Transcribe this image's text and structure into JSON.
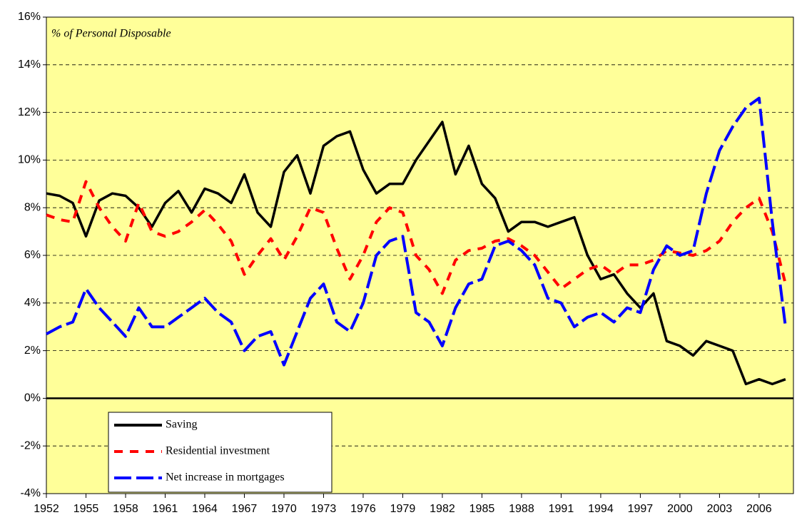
{
  "chart_data": {
    "type": "line",
    "annotation": "% of Personal Disposable",
    "x": [
      1952,
      1953,
      1954,
      1955,
      1956,
      1957,
      1958,
      1959,
      1960,
      1961,
      1962,
      1963,
      1964,
      1965,
      1966,
      1967,
      1968,
      1969,
      1970,
      1971,
      1972,
      1973,
      1974,
      1975,
      1976,
      1977,
      1978,
      1979,
      1980,
      1981,
      1982,
      1983,
      1984,
      1985,
      1986,
      1987,
      1988,
      1989,
      1990,
      1991,
      1992,
      1993,
      1994,
      1995,
      1996,
      1997,
      1998,
      1999,
      2000,
      2001,
      2002,
      2003,
      2004,
      2005,
      2006,
      2007,
      2008
    ],
    "series": [
      {
        "name": "Saving",
        "color": "#000000",
        "line_style": "solid",
        "values": [
          8.6,
          8.5,
          8.2,
          6.8,
          8.3,
          8.6,
          8.5,
          8.0,
          7.2,
          8.2,
          8.7,
          7.8,
          8.8,
          8.6,
          8.2,
          9.4,
          7.8,
          7.2,
          9.5,
          10.2,
          8.6,
          10.6,
          11.0,
          11.2,
          9.6,
          8.6,
          9.0,
          9.0,
          10.0,
          10.8,
          11.6,
          9.4,
          10.6,
          9.0,
          8.4,
          7.0,
          7.4,
          7.4,
          7.2,
          7.4,
          7.6,
          6.0,
          5.0,
          5.2,
          4.4,
          3.8,
          4.4,
          2.4,
          2.2,
          1.8,
          2.4,
          2.2,
          2.0,
          0.6,
          0.8,
          0.6,
          0.8
        ]
      },
      {
        "name": "Residential investment",
        "color": "#ff0000",
        "line_style": "dashed",
        "values": [
          7.7,
          7.5,
          7.4,
          9.1,
          8.0,
          7.2,
          6.6,
          8.2,
          7.0,
          6.8,
          7.0,
          7.4,
          7.9,
          7.3,
          6.6,
          5.2,
          6.0,
          6.7,
          5.8,
          6.8,
          8.0,
          7.8,
          6.3,
          5.0,
          6.0,
          7.4,
          8.0,
          7.8,
          6.0,
          5.4,
          4.4,
          5.8,
          6.2,
          6.3,
          6.6,
          6.7,
          6.4,
          6.0,
          5.3,
          4.6,
          5.0,
          5.4,
          5.6,
          5.2,
          5.6,
          5.6,
          5.8,
          6.2,
          6.1,
          6.0,
          6.2,
          6.6,
          7.4,
          8.0,
          8.4,
          7.0,
          4.8
        ]
      },
      {
        "name": "Net increase in mortgages",
        "color": "#0000ff",
        "line_style": "long-dashed",
        "values": [
          2.7,
          3.0,
          3.2,
          4.6,
          3.8,
          3.2,
          2.6,
          3.8,
          3.0,
          3.0,
          3.4,
          3.8,
          4.2,
          3.6,
          3.2,
          2.0,
          2.6,
          2.8,
          1.4,
          2.8,
          4.2,
          4.8,
          3.2,
          2.8,
          4.0,
          6.0,
          6.6,
          6.8,
          3.6,
          3.2,
          2.2,
          3.8,
          4.8,
          5.0,
          6.4,
          6.6,
          6.2,
          5.6,
          4.2,
          4.0,
          3.0,
          3.4,
          3.6,
          3.2,
          3.8,
          3.6,
          5.4,
          6.4,
          6.0,
          6.2,
          8.6,
          10.4,
          11.4,
          12.2,
          12.6,
          7.4,
          3.0
        ]
      }
    ],
    "xlim": [
      1952,
      2008.6
    ],
    "xticks": [
      1952,
      1955,
      1958,
      1961,
      1964,
      1967,
      1970,
      1973,
      1976,
      1979,
      1982,
      1985,
      1988,
      1991,
      1994,
      1997,
      2000,
      2003,
      2006
    ],
    "ylim": [
      -4,
      16
    ],
    "yticks": [
      {
        "value": -4,
        "label": "-4%"
      },
      {
        "value": -2,
        "label": "-2%"
      },
      {
        "value": 0,
        "label": "0%"
      },
      {
        "value": 2,
        "label": "2%"
      },
      {
        "value": 4,
        "label": "4%"
      },
      {
        "value": 6,
        "label": "6%"
      },
      {
        "value": 8,
        "label": "8%"
      },
      {
        "value": 10,
        "label": "10%"
      },
      {
        "value": 12,
        "label": "12%"
      },
      {
        "value": 14,
        "label": "14%"
      },
      {
        "value": 16,
        "label": "16%"
      }
    ],
    "grid": true,
    "zero_line": true,
    "legend": "lower left"
  }
}
